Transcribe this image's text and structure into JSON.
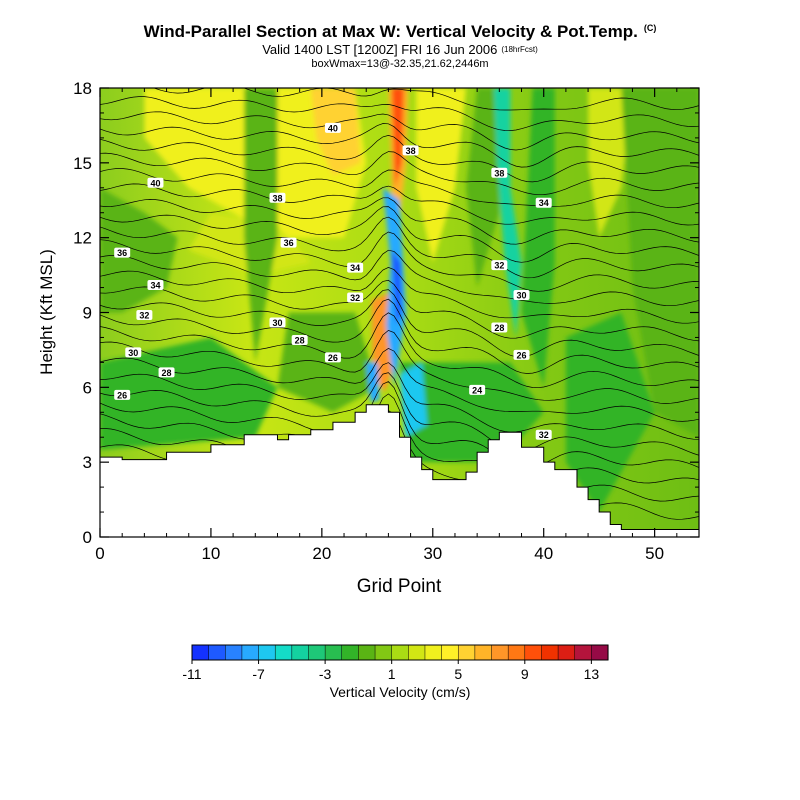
{
  "header": {
    "title": "Wind-Parallel Section at Max W: Vertical Velocity & Pot.Temp.",
    "title_mark": "(C)",
    "subtitle": "Valid 1400 LST [1200Z] FRI 16 Jun 2006",
    "subtitle_note": "(18hrFcst)",
    "boxinfo": "boxWmax=13@-32.35,21.62,2446m"
  },
  "chart_data": {
    "type": "contour",
    "xlabel": "Grid Point",
    "ylabel": "Height (Kft MSL)",
    "xlim": [
      0,
      54
    ],
    "ylim": [
      0,
      18
    ],
    "x_ticks": [
      0,
      10,
      20,
      30,
      40,
      50
    ],
    "y_ticks": [
      0,
      3,
      6,
      9,
      12,
      15,
      18
    ],
    "terrain": [
      [
        0,
        3.2
      ],
      [
        2,
        3.2
      ],
      [
        2,
        3.1
      ],
      [
        6,
        3.1
      ],
      [
        6,
        3.4
      ],
      [
        10,
        3.4
      ],
      [
        10,
        3.7
      ],
      [
        13,
        3.7
      ],
      [
        13,
        4.1
      ],
      [
        16,
        4.1
      ],
      [
        16,
        3.9
      ],
      [
        17,
        3.9
      ],
      [
        17,
        4.1
      ],
      [
        19,
        4.1
      ],
      [
        19,
        4.3
      ],
      [
        21,
        4.3
      ],
      [
        21,
        4.6
      ],
      [
        23,
        4.6
      ],
      [
        23,
        5.0
      ],
      [
        24,
        5.0
      ],
      [
        24,
        5.3
      ],
      [
        26,
        5.3
      ],
      [
        26,
        5.0
      ],
      [
        27,
        5.0
      ],
      [
        27,
        4.0
      ],
      [
        28,
        4.0
      ],
      [
        28,
        3.2
      ],
      [
        29,
        3.2
      ],
      [
        29,
        2.7
      ],
      [
        30,
        2.7
      ],
      [
        30,
        2.3
      ],
      [
        33,
        2.3
      ],
      [
        33,
        2.6
      ],
      [
        34,
        2.6
      ],
      [
        34,
        3.4
      ],
      [
        35,
        3.4
      ],
      [
        35,
        3.9
      ],
      [
        36,
        3.9
      ],
      [
        36,
        4.2
      ],
      [
        38,
        4.2
      ],
      [
        38,
        3.6
      ],
      [
        40,
        3.6
      ],
      [
        40,
        3.0
      ],
      [
        41,
        3.0
      ],
      [
        41,
        2.7
      ],
      [
        43,
        2.7
      ],
      [
        43,
        2.0
      ],
      [
        44,
        2.0
      ],
      [
        44,
        1.5
      ],
      [
        45,
        1.5
      ],
      [
        45,
        1.0
      ],
      [
        46,
        1.0
      ],
      [
        46,
        0.5
      ],
      [
        47,
        0.5
      ],
      [
        47,
        0.3
      ],
      [
        54,
        0.3
      ]
    ],
    "contour_labels": [
      {
        "x": 21,
        "y": 16.4,
        "text": "40"
      },
      {
        "x": 5,
        "y": 14.2,
        "text": "40"
      },
      {
        "x": 28,
        "y": 15.5,
        "text": "38"
      },
      {
        "x": 36,
        "y": 14.6,
        "text": "38"
      },
      {
        "x": 16,
        "y": 13.6,
        "text": "38"
      },
      {
        "x": 40,
        "y": 13.4,
        "text": "34"
      },
      {
        "x": 2,
        "y": 11.4,
        "text": "36"
      },
      {
        "x": 17,
        "y": 11.8,
        "text": "36"
      },
      {
        "x": 23,
        "y": 10.8,
        "text": "34"
      },
      {
        "x": 36,
        "y": 10.9,
        "text": "32"
      },
      {
        "x": 5,
        "y": 10.1,
        "text": "34"
      },
      {
        "x": 23,
        "y": 9.6,
        "text": "32"
      },
      {
        "x": 38,
        "y": 9.7,
        "text": "30"
      },
      {
        "x": 4,
        "y": 8.9,
        "text": "32"
      },
      {
        "x": 16,
        "y": 8.6,
        "text": "30"
      },
      {
        "x": 36,
        "y": 8.4,
        "text": "28"
      },
      {
        "x": 18,
        "y": 7.9,
        "text": "28"
      },
      {
        "x": 3,
        "y": 7.4,
        "text": "30"
      },
      {
        "x": 21,
        "y": 7.2,
        "text": "26"
      },
      {
        "x": 38,
        "y": 7.3,
        "text": "26"
      },
      {
        "x": 6,
        "y": 6.6,
        "text": "28"
      },
      {
        "x": 34,
        "y": 5.9,
        "text": "24"
      },
      {
        "x": 2,
        "y": 5.7,
        "text": "26"
      },
      {
        "x": 40,
        "y": 4.1,
        "text": "32"
      }
    ],
    "colorbar": {
      "label": "Vertical Velocity (cm/s)",
      "tick_labels": [
        "-11",
        "-7",
        "-3",
        "1",
        "5",
        "9",
        "13"
      ],
      "colors": [
        "#1432ff",
        "#1e5aff",
        "#2882ff",
        "#28aaff",
        "#1ec8f0",
        "#14dcc8",
        "#14d2a0",
        "#1ec878",
        "#28be50",
        "#32b428",
        "#5ab414",
        "#82c814",
        "#aadc14",
        "#d2e614",
        "#f0f01e",
        "#fff028",
        "#ffd232",
        "#ffb428",
        "#ff9628",
        "#ff7814",
        "#ff500a",
        "#f03200",
        "#dc1e14",
        "#b4143c",
        "#960a46"
      ]
    },
    "updraft_core": {
      "grid_point": 26.5
    },
    "downdraft_core": {
      "grid_point": 27
    }
  }
}
